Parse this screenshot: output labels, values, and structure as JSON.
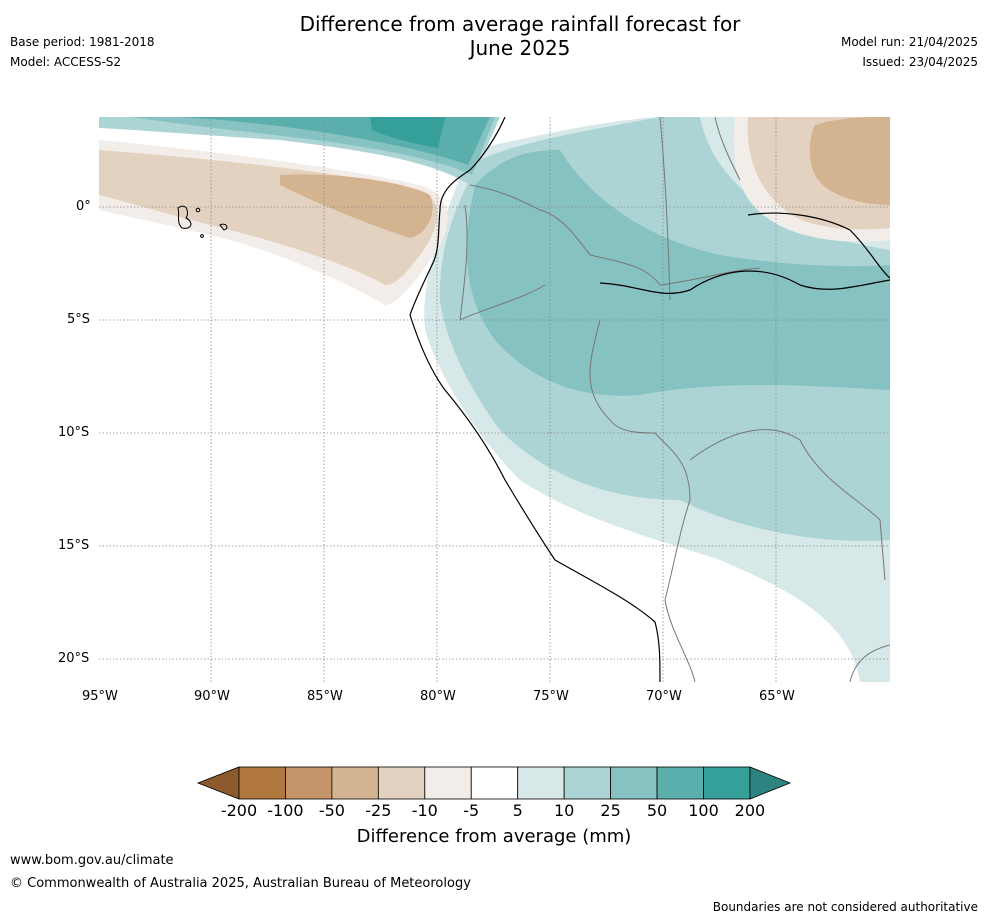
{
  "title": {
    "line1": "Difference from average rainfall forecast for",
    "line2": "June 2025"
  },
  "meta": {
    "base_period": "Base period: 1981-2018",
    "model": "Model: ACCESS-S2",
    "model_run": "Model run: 21/04/2025",
    "issued": "Issued: 23/04/2025"
  },
  "axes": {
    "longitude_labels": [
      "95°W",
      "90°W",
      "85°W",
      "80°W",
      "75°W",
      "70°W",
      "65°W"
    ],
    "latitude_labels": [
      "0°",
      "5°S",
      "10°S",
      "15°S",
      "20°S"
    ]
  },
  "colorbar": {
    "title": "Difference from average (mm)",
    "tick_labels": [
      "-200",
      "-100",
      "-50",
      "-25",
      "-10",
      "-5",
      "5",
      "10",
      "25",
      "50",
      "100",
      "200"
    ],
    "colors": [
      "#8c5a2c",
      "#b0773e",
      "#c5946a",
      "#d4b390",
      "#e4d2c0",
      "#f2ede9",
      "#ffffff",
      "#d6e8e7",
      "#add4d4",
      "#86c2c1",
      "#5aaeab",
      "#35a09a",
      "#2d8380"
    ]
  },
  "footer": {
    "url": "www.bom.gov.au/climate",
    "copyright": "© Commonwealth of Australia 2025, Australian Bureau of Meteorology",
    "disclaimer": "Boundaries are not considered authoritative"
  }
}
